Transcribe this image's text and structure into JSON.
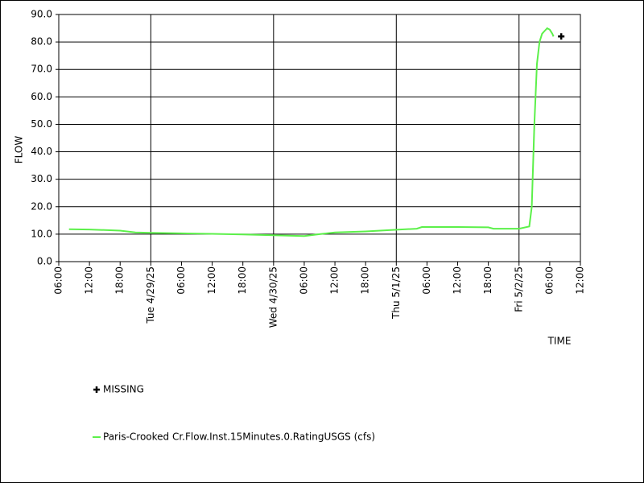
{
  "chart_data": {
    "type": "line",
    "y_label": "FLOW",
    "x_label": "TIME",
    "xlim": [
      "2025-04-28 06:00",
      "2025-05-02 12:00"
    ],
    "xticks": [
      {
        "value": "2025-04-28 06:00",
        "label": "06:00"
      },
      {
        "value": "2025-04-28 12:00",
        "label": "12:00"
      },
      {
        "value": "2025-04-28 18:00",
        "label": "18:00"
      },
      {
        "value": "2025-04-29 00:00",
        "label": "Tue 4/29/25"
      },
      {
        "value": "2025-04-29 06:00",
        "label": "06:00"
      },
      {
        "value": "2025-04-29 12:00",
        "label": "12:00"
      },
      {
        "value": "2025-04-29 18:00",
        "label": "18:00"
      },
      {
        "value": "2025-04-30 00:00",
        "label": "Wed 4/30/25"
      },
      {
        "value": "2025-04-30 06:00",
        "label": "06:00"
      },
      {
        "value": "2025-04-30 12:00",
        "label": "12:00"
      },
      {
        "value": "2025-04-30 18:00",
        "label": "18:00"
      },
      {
        "value": "2025-05-01 00:00",
        "label": "Thu 5/1/25"
      },
      {
        "value": "2025-05-01 06:00",
        "label": "06:00"
      },
      {
        "value": "2025-05-01 12:00",
        "label": "12:00"
      },
      {
        "value": "2025-05-01 18:00",
        "label": "18:00"
      },
      {
        "value": "2025-05-02 00:00",
        "label": "Fri 5/2/25"
      },
      {
        "value": "2025-05-02 06:00",
        "label": "06:00"
      },
      {
        "value": "2025-05-02 12:00",
        "label": "12:00"
      }
    ],
    "ylim": [
      0,
      90
    ],
    "yticks": [
      {
        "value": 0,
        "label": "0.0"
      },
      {
        "value": 10,
        "label": "10.0"
      },
      {
        "value": 20,
        "label": "20.0"
      },
      {
        "value": 30,
        "label": "30.0"
      },
      {
        "value": 40,
        "label": "40.0"
      },
      {
        "value": 50,
        "label": "50.0"
      },
      {
        "value": 60,
        "label": "60.0"
      },
      {
        "value": 70,
        "label": "70.0"
      },
      {
        "value": 80,
        "label": "80.0"
      },
      {
        "value": 90,
        "label": "90.0"
      }
    ],
    "grid": true,
    "series": [
      {
        "name": "Paris-Crooked Cr.Flow.Inst.15Minutes.0.RatingUSGS (cfs)",
        "color": "#5cf04a",
        "x": [
          "2025-04-28 08:00",
          "2025-04-28 12:00",
          "2025-04-28 18:00",
          "2025-04-28 21:00",
          "2025-04-29 00:00",
          "2025-04-29 06:00",
          "2025-04-29 12:00",
          "2025-04-29 18:00",
          "2025-04-30 00:00",
          "2025-04-30 06:00",
          "2025-04-30 09:00",
          "2025-04-30 12:00",
          "2025-04-30 18:00",
          "2025-05-01 00:00",
          "2025-05-01 04:00",
          "2025-05-01 05:00",
          "2025-05-01 12:00",
          "2025-05-01 18:00",
          "2025-05-01 19:00",
          "2025-05-02 00:00",
          "2025-05-02 02:00",
          "2025-05-02 02:30",
          "2025-05-02 03:00",
          "2025-05-02 03:30",
          "2025-05-02 04:00",
          "2025-05-02 04:30",
          "2025-05-02 05:00",
          "2025-05-02 05:30",
          "2025-05-02 06:00",
          "2025-05-02 06:30",
          "2025-05-02 06:45"
        ],
        "values": [
          11.8,
          11.7,
          11.3,
          10.6,
          10.5,
          10.3,
          10.1,
          9.9,
          9.6,
          9.3,
          10.0,
          10.6,
          11.0,
          11.6,
          12.0,
          12.6,
          12.6,
          12.5,
          12.0,
          12.0,
          12.8,
          20,
          50,
          72,
          80,
          83,
          84,
          85,
          84.5,
          83,
          82
        ]
      },
      {
        "name": "MISSING",
        "color": "#000000",
        "marker": "plus",
        "x": [
          "2025-05-02 08:15"
        ],
        "values": [
          82
        ]
      }
    ]
  }
}
